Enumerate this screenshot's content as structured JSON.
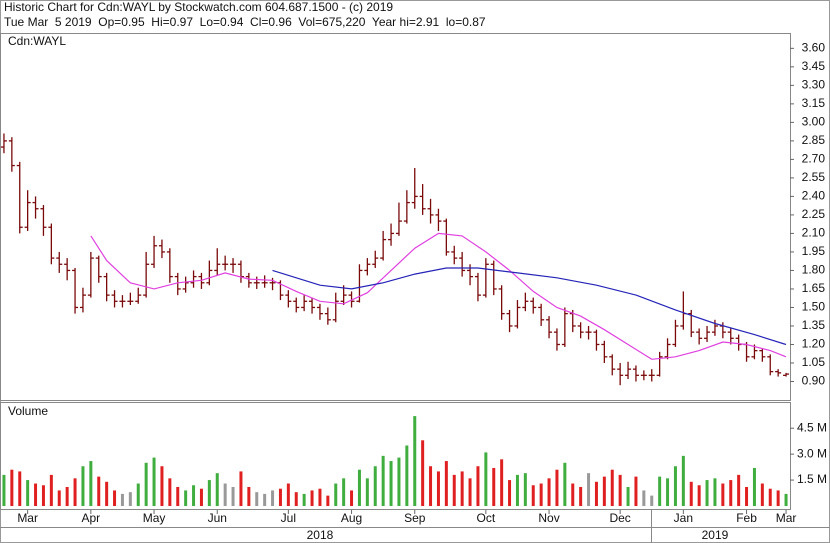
{
  "chart_data": {
    "type": "ohlc",
    "title": "Historic Chart for Cdn:WAYL by Stockwatch.com 604.687.1500 - (c) 2019",
    "subtitle": "Tue Mar  5 2019  Op=0.95  Hi=0.97  Lo=0.94  Cl=0.96  Vol=675,220  Year hi=2.91  lo=0.87",
    "symbol_label": "Cdn:WAYL",
    "volume_label": "Volume",
    "bar_color": "#7a0a0a",
    "up_color": "#3fae3f",
    "down_color": "#e02020",
    "flat_color": "#999999",
    "open": [
      2.8,
      2.85,
      2.65,
      2.15,
      2.35,
      2.3,
      2.15,
      1.9,
      1.85,
      1.8,
      1.5,
      1.6,
      1.9,
      1.75,
      1.6,
      1.55,
      1.55,
      1.55,
      1.6,
      1.85,
      2.0,
      1.95,
      1.75,
      1.65,
      1.7,
      1.75,
      1.7,
      1.8,
      1.85,
      1.85,
      1.85,
      1.75,
      1.7,
      1.7,
      1.7,
      1.7,
      1.6,
      1.55,
      1.5,
      1.55,
      1.5,
      1.45,
      1.4,
      1.55,
      1.6,
      1.55,
      1.8,
      1.85,
      1.9,
      2.05,
      2.1,
      2.2,
      2.35,
      2.4,
      2.3,
      2.25,
      2.2,
      1.95,
      1.9,
      1.8,
      1.75,
      1.6,
      1.85,
      1.65,
      1.45,
      1.35,
      1.5,
      1.55,
      1.5,
      1.4,
      1.3,
      1.2,
      1.45,
      1.35,
      1.3,
      1.3,
      1.2,
      1.1,
      1.0,
      0.95,
      1.0,
      0.95,
      0.95,
      0.95,
      1.1,
      1.2,
      1.35,
      1.45,
      1.3,
      1.25,
      1.3,
      1.35,
      1.3,
      1.25,
      1.2,
      1.1,
      1.15,
      1.1,
      0.98,
      0.95
    ],
    "high": [
      2.91,
      2.88,
      2.68,
      2.45,
      2.4,
      2.33,
      2.18,
      1.95,
      1.9,
      1.82,
      1.66,
      1.95,
      1.92,
      1.78,
      1.64,
      1.6,
      1.62,
      1.66,
      1.95,
      2.08,
      2.05,
      1.98,
      1.78,
      1.75,
      1.8,
      1.78,
      1.88,
      1.98,
      1.92,
      1.9,
      1.88,
      1.78,
      1.75,
      1.76,
      1.74,
      1.72,
      1.64,
      1.58,
      1.6,
      1.58,
      1.53,
      1.5,
      1.62,
      1.68,
      1.63,
      1.85,
      1.9,
      1.96,
      2.12,
      2.18,
      2.35,
      2.45,
      2.63,
      2.5,
      2.38,
      2.3,
      2.22,
      2.0,
      1.95,
      1.85,
      1.78,
      1.9,
      1.88,
      1.68,
      1.48,
      1.56,
      1.62,
      1.58,
      1.53,
      1.43,
      1.33,
      1.5,
      1.48,
      1.38,
      1.35,
      1.32,
      1.23,
      1.12,
      1.05,
      1.06,
      1.03,
      0.99,
      1.0,
      1.14,
      1.25,
      1.4,
      1.63,
      1.48,
      1.33,
      1.35,
      1.4,
      1.38,
      1.33,
      1.28,
      1.22,
      1.2,
      1.17,
      1.12,
      1.0,
      0.97
    ],
    "low": [
      2.75,
      2.6,
      2.1,
      2.12,
      2.22,
      2.08,
      1.85,
      1.78,
      1.72,
      1.45,
      1.46,
      1.58,
      1.7,
      1.55,
      1.5,
      1.5,
      1.52,
      1.53,
      1.58,
      1.82,
      1.9,
      1.7,
      1.6,
      1.62,
      1.66,
      1.65,
      1.68,
      1.76,
      1.8,
      1.78,
      1.7,
      1.66,
      1.65,
      1.66,
      1.64,
      1.56,
      1.5,
      1.46,
      1.47,
      1.45,
      1.4,
      1.36,
      1.38,
      1.52,
      1.5,
      1.54,
      1.76,
      1.82,
      1.88,
      2.0,
      2.08,
      2.18,
      2.3,
      2.25,
      2.18,
      2.12,
      1.92,
      1.85,
      1.75,
      1.68,
      1.55,
      1.58,
      1.6,
      1.4,
      1.3,
      1.33,
      1.47,
      1.45,
      1.35,
      1.25,
      1.15,
      1.18,
      1.3,
      1.25,
      1.24,
      1.15,
      1.05,
      0.95,
      0.87,
      0.92,
      0.9,
      0.91,
      0.9,
      0.94,
      1.08,
      1.18,
      1.32,
      1.26,
      1.2,
      1.22,
      1.27,
      1.25,
      1.2,
      1.15,
      1.06,
      1.08,
      1.06,
      0.95,
      0.94,
      0.94
    ],
    "close": [
      2.85,
      2.65,
      2.15,
      2.35,
      2.3,
      2.15,
      1.9,
      1.85,
      1.8,
      1.5,
      1.6,
      1.9,
      1.75,
      1.6,
      1.55,
      1.55,
      1.55,
      1.6,
      1.85,
      2.0,
      1.95,
      1.75,
      1.65,
      1.7,
      1.75,
      1.7,
      1.8,
      1.85,
      1.85,
      1.85,
      1.75,
      1.7,
      1.7,
      1.7,
      1.7,
      1.6,
      1.55,
      1.5,
      1.55,
      1.5,
      1.45,
      1.4,
      1.55,
      1.6,
      1.55,
      1.8,
      1.85,
      1.9,
      2.05,
      2.1,
      2.2,
      2.35,
      2.4,
      2.3,
      2.25,
      2.2,
      1.95,
      1.9,
      1.8,
      1.75,
      1.6,
      1.85,
      1.65,
      1.45,
      1.35,
      1.5,
      1.55,
      1.5,
      1.4,
      1.3,
      1.2,
      1.45,
      1.35,
      1.3,
      1.3,
      1.2,
      1.1,
      1.0,
      0.95,
      1.0,
      0.95,
      0.95,
      0.95,
      1.1,
      1.2,
      1.35,
      1.45,
      1.3,
      1.25,
      1.3,
      1.35,
      1.3,
      1.25,
      1.2,
      1.1,
      1.15,
      1.1,
      0.98,
      0.97,
      0.96
    ],
    "volume": [
      1800000,
      2100000,
      2000000,
      1500000,
      1300000,
      1200000,
      1800000,
      900000,
      1100000,
      1600000,
      2300000,
      2600000,
      1700000,
      1400000,
      900000,
      700000,
      800000,
      1300000,
      2500000,
      2800000,
      2300000,
      1600000,
      1100000,
      900000,
      1200000,
      1000000,
      1500000,
      1900000,
      1300000,
      1100000,
      2000000,
      1100000,
      800000,
      700000,
      900000,
      1000000,
      1300000,
      800000,
      700000,
      900000,
      1000000,
      600000,
      1300000,
      1600000,
      900000,
      2100000,
      1600000,
      2300000,
      2900000,
      2600000,
      2800000,
      3500000,
      5200000,
      3800000,
      2300000,
      2000000,
      2600000,
      1800000,
      2000000,
      1600000,
      2300000,
      3100000,
      2200000,
      2700000,
      1500000,
      1800000,
      1900000,
      1200000,
      1300000,
      1600000,
      2100000,
      2500000,
      1300000,
      1100000,
      1900000,
      1400000,
      1700000,
      2100000,
      1800000,
      1100000,
      1700000,
      900000,
      600000,
      1700000,
      1600000,
      2300000,
      2900000,
      1400000,
      1200000,
      1500000,
      1600000,
      1300000,
      1500000,
      1800000,
      1100000,
      2200000,
      1300000,
      1000000,
      900000,
      700000
    ],
    "ma_series": [
      {
        "color": "#e040e0",
        "x": [
          11,
          13,
          16,
          19,
          22,
          25,
          28,
          31,
          34,
          37,
          40,
          43,
          46,
          49,
          52,
          55,
          58,
          61,
          64,
          67,
          70,
          73,
          76,
          79,
          82,
          85,
          88,
          91,
          94,
          97,
          99
        ],
        "values": [
          2.08,
          1.88,
          1.7,
          1.65,
          1.7,
          1.72,
          1.78,
          1.73,
          1.72,
          1.63,
          1.55,
          1.53,
          1.62,
          1.8,
          1.98,
          2.1,
          2.08,
          1.95,
          1.8,
          1.63,
          1.5,
          1.43,
          1.32,
          1.2,
          1.08,
          1.1,
          1.15,
          1.22,
          1.2,
          1.15,
          1.1
        ]
      },
      {
        "color": "#2424b8",
        "x": [
          34,
          40,
          44,
          48,
          52,
          56,
          60,
          65,
          70,
          75,
          80,
          85,
          90,
          95,
          99
        ],
        "values": [
          1.8,
          1.68,
          1.65,
          1.7,
          1.77,
          1.82,
          1.82,
          1.78,
          1.74,
          1.68,
          1.6,
          1.48,
          1.37,
          1.28,
          1.2
        ]
      }
    ],
    "xlim": [
      -0.5,
      99.5
    ],
    "xticks": [
      {
        "value": 3,
        "label": "Mar"
      },
      {
        "value": 11,
        "label": "Apr"
      },
      {
        "value": 19,
        "label": "May"
      },
      {
        "value": 27,
        "label": "Jun"
      },
      {
        "value": 36,
        "label": "Jul"
      },
      {
        "value": 44,
        "label": "Aug"
      },
      {
        "value": 52,
        "label": "Sep"
      },
      {
        "value": 61,
        "label": "Oct"
      },
      {
        "value": 69,
        "label": "Nov"
      },
      {
        "value": 78,
        "label": "Dec"
      },
      {
        "value": 86,
        "label": "Jan"
      },
      {
        "value": 94,
        "label": "Feb"
      },
      {
        "value": 99,
        "label": "Mar"
      }
    ],
    "years": [
      {
        "value": 40,
        "label": "2018"
      },
      {
        "value": 90,
        "label": "2019"
      }
    ],
    "ylim": [
      0.75,
      3.7
    ],
    "yticks": [
      {
        "value": 0.9,
        "label": "0.90"
      },
      1.05,
      {
        "value": 1.2,
        "label": "1.20"
      },
      1.35,
      {
        "value": 1.5,
        "label": "1.50"
      },
      1.65,
      {
        "value": 1.8,
        "label": "1.80"
      },
      1.95,
      {
        "value": 2.1,
        "label": "2.10"
      },
      2.25,
      {
        "value": 2.4,
        "label": "2.40"
      },
      2.55,
      {
        "value": 2.7,
        "label": "2.70"
      },
      2.85,
      {
        "value": 3.0,
        "label": "3.00"
      },
      3.15,
      {
        "value": 3.3,
        "label": "3.30"
      },
      3.45,
      {
        "value": 3.6,
        "label": "3.60"
      }
    ],
    "volume_ylim": [
      0,
      5900000
    ],
    "volume_ticks": [
      {
        "value": 1500000,
        "label": "1.5 M"
      },
      {
        "value": 3000000,
        "label": "3.0 M"
      },
      {
        "value": 4500000,
        "label": "4.5 M"
      }
    ]
  }
}
